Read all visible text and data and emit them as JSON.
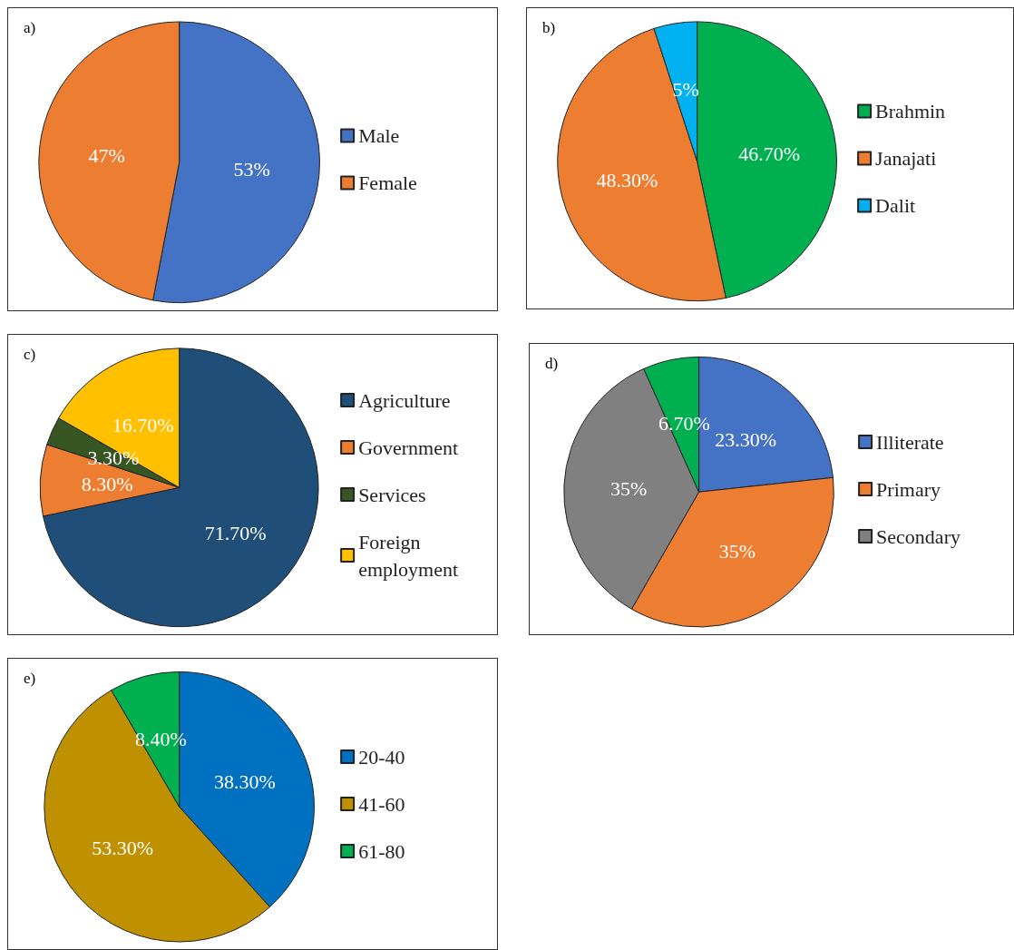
{
  "chart_data": [
    {
      "type": "pie",
      "title": "a)",
      "categories": [
        "Male",
        "Female"
      ],
      "values": [
        53,
        47
      ],
      "colors": [
        "#4472c4",
        "#ed7d31"
      ],
      "value_labels": [
        "53%",
        "47%"
      ],
      "legend": "right"
    },
    {
      "type": "pie",
      "title": "b)",
      "categories": [
        "Brahmin",
        "Janajati",
        "Dalit"
      ],
      "values": [
        46.7,
        48.3,
        5
      ],
      "colors": [
        "#00b050",
        "#ed7d31",
        "#00b0f0"
      ],
      "value_labels": [
        "46.70%",
        "48.30%",
        "5%"
      ],
      "legend": "right"
    },
    {
      "type": "pie",
      "title": "c)",
      "categories": [
        "Agriculture",
        "Government",
        "Services",
        "Foreign employment"
      ],
      "values": [
        71.7,
        8.3,
        3.3,
        16.7
      ],
      "colors": [
        "#1f4e79",
        "#ed7d31",
        "#375623",
        "#ffc000"
      ],
      "value_labels": [
        "71.70%",
        "8.30%",
        "3.30%",
        "16.70%"
      ],
      "legend": "right"
    },
    {
      "type": "pie",
      "title": "d)",
      "categories": [
        "Illiterate",
        "Primary",
        "Secondary",
        null
      ],
      "values": [
        23.3,
        35,
        35,
        6.7
      ],
      "colors": [
        "#4472c4",
        "#ed7d31",
        "#808080",
        "#00b050"
      ],
      "value_labels": [
        "23.30%",
        "35%",
        "35%",
        "6.70%"
      ],
      "legend": "right"
    },
    {
      "type": "pie",
      "title": "e)",
      "categories": [
        "20-40",
        "41-60",
        "61-80"
      ],
      "values": [
        38.3,
        53.3,
        8.4
      ],
      "colors": [
        "#0070c0",
        "#bf9000",
        "#00b050"
      ],
      "value_labels": [
        "38.30%",
        "53.30%",
        "8.40%"
      ],
      "legend": "right"
    }
  ]
}
